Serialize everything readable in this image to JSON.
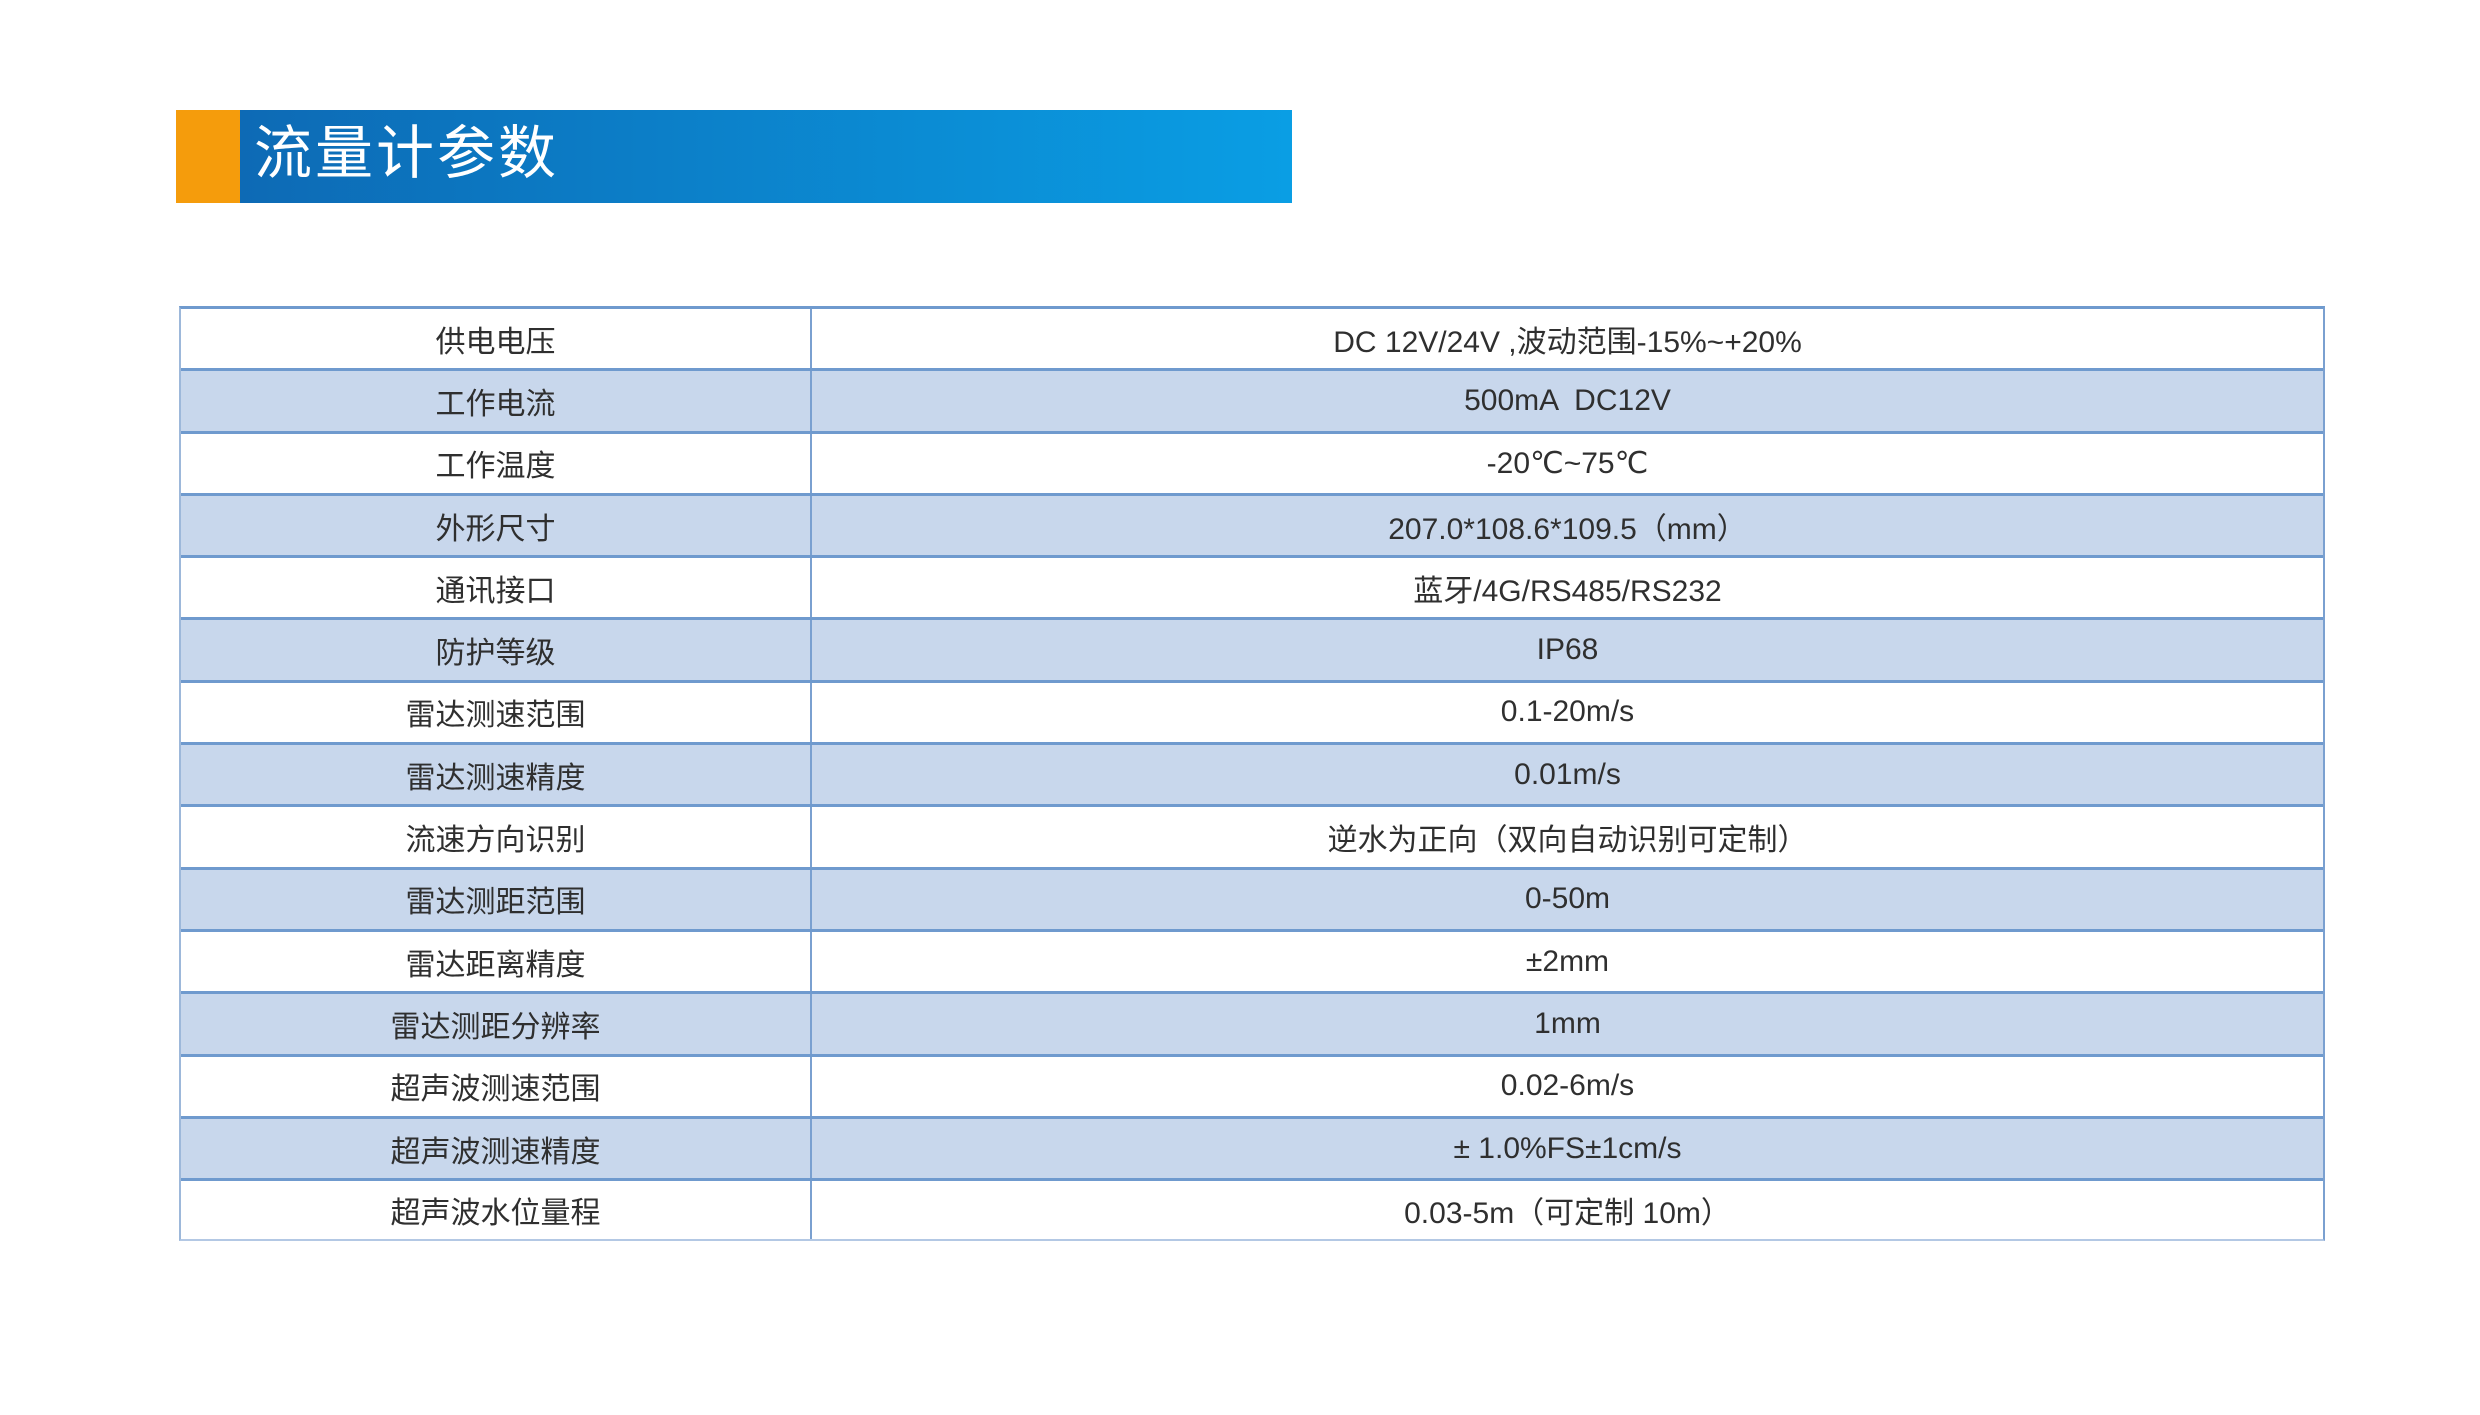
{
  "page": {
    "background": "#FFFFFF"
  },
  "header": {
    "title": "流量计参数",
    "accent_color": "#F59C0C",
    "bar_gradient_start": "#0D6AB5",
    "bar_gradient_end": "#0A9EE4",
    "title_color": "#FFFFFF"
  },
  "table": {
    "row_alt_color": "#C8D7EC",
    "border_color": "#6F9ACE",
    "text_color": "#2F2F2F",
    "rows": [
      {
        "label": "供电电压",
        "value": "DC 12V/24V ,波动范围-15%~+20%"
      },
      {
        "label": "工作电流",
        "value": "500mA  DC12V"
      },
      {
        "label": "工作温度",
        "value": "-20℃~75℃"
      },
      {
        "label": "外形尺寸",
        "value": "207.0*108.6*109.5（mm）"
      },
      {
        "label": "通讯接口",
        "value": "蓝牙/4G/RS485/RS232"
      },
      {
        "label": "防护等级",
        "value": "IP68"
      },
      {
        "label": "雷达测速范围",
        "value": "0.1-20m/s"
      },
      {
        "label": "雷达测速精度",
        "value": "0.01m/s"
      },
      {
        "label": "流速方向识别",
        "value": "逆水为正向（双向自动识别可定制）"
      },
      {
        "label": "雷达测距范围",
        "value": "0-50m"
      },
      {
        "label": "雷达距离精度",
        "value": "±2mm"
      },
      {
        "label": "雷达测距分辨率",
        "value": "1mm"
      },
      {
        "label": "超声波测速范围",
        "value": "0.02-6m/s"
      },
      {
        "label": "超声波测速精度",
        "value": "± 1.0%FS±1cm/s"
      },
      {
        "label": "超声波水位量程",
        "value": "0.03-5m（可定制 10m）"
      }
    ]
  }
}
